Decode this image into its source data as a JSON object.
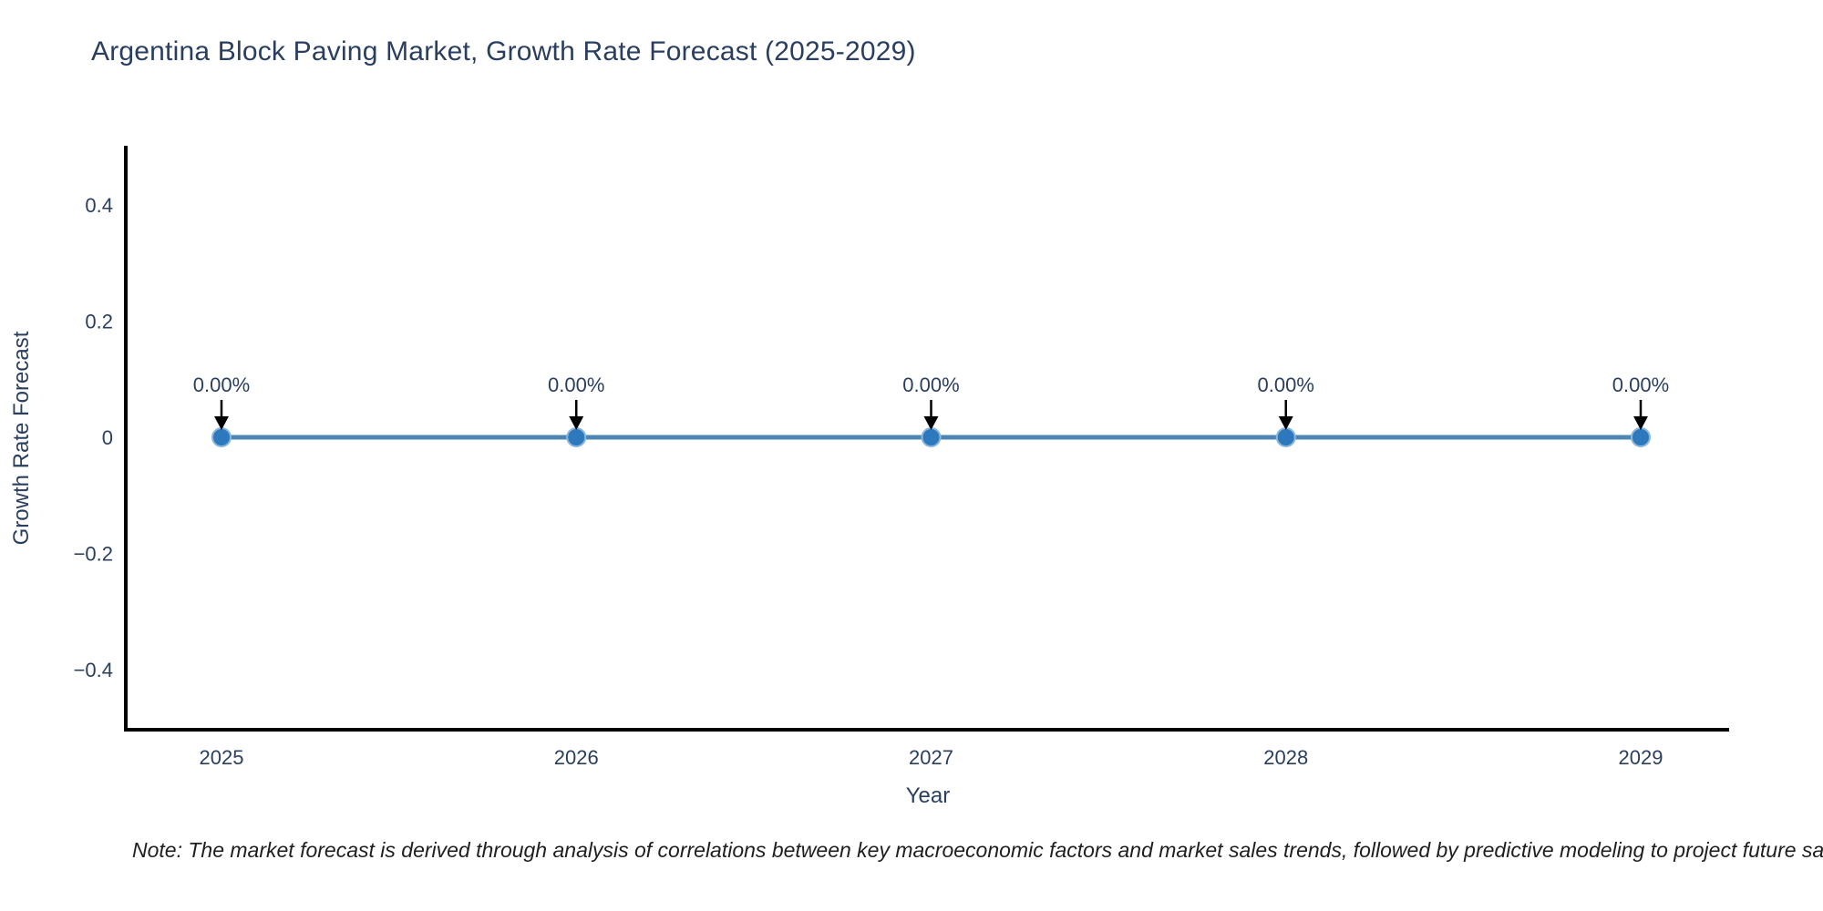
{
  "note": "Note: The market forecast is derived through analysis of correlations between key macroeconomic factors and market sales trends, followed by predictive modeling to project future sales",
  "chart_data": {
    "type": "line",
    "title": "Argentina Block Paving Market, Growth Rate Forecast (2025-2029)",
    "xlabel": "Year",
    "ylabel": "Growth Rate Forecast",
    "categories": [
      "2025",
      "2026",
      "2027",
      "2028",
      "2029"
    ],
    "values": [
      0,
      0,
      0,
      0,
      0
    ],
    "point_labels": [
      "0.00%",
      "0.00%",
      "0.00%",
      "0.00%",
      "0.00%"
    ],
    "yticks": [
      0.4,
      0.2,
      0,
      -0.2,
      -0.4
    ],
    "ytick_labels": [
      "0.4",
      "0.2",
      "0",
      "−0.2",
      "−0.4"
    ],
    "ylim": [
      -0.5,
      0.5
    ],
    "grid": false,
    "legend": "none",
    "marker_size": 10,
    "colors": {
      "line": "#4d86b5",
      "marker": "#2e79bd",
      "marker_edge": "#8ab7dd",
      "axis": "#000000",
      "text": "#2a3f5f",
      "arrow": "#000000",
      "background": "#ffffff"
    }
  }
}
